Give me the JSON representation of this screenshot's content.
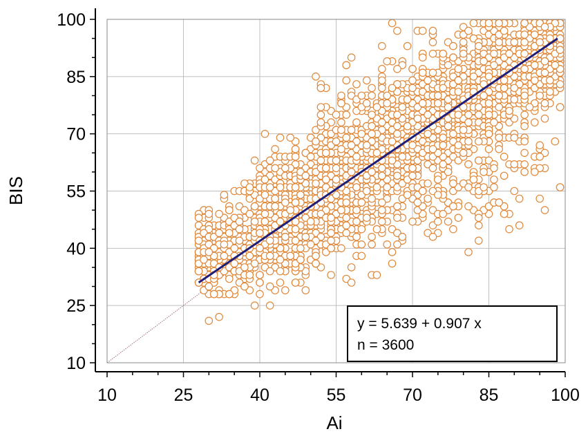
{
  "chart_data": {
    "type": "scatter",
    "xlabel": "Ai",
    "ylabel": "BIS",
    "xlim": [
      10,
      100
    ],
    "ylim": [
      10,
      100
    ],
    "xticks": [
      10,
      25,
      40,
      55,
      70,
      85,
      100
    ],
    "yticks": [
      10,
      25,
      40,
      55,
      70,
      85,
      100
    ],
    "grid": true,
    "identity_line": {
      "from": [
        10,
        10
      ],
      "to": [
        100,
        100
      ],
      "style": "dotted"
    },
    "regression": {
      "intercept": 5.639,
      "slope": 0.907,
      "x_range": [
        28,
        98.5
      ]
    },
    "annotation": {
      "equation": "y = 5.639 + 0.907 x",
      "n_label": "n = 3600"
    },
    "n": 3600,
    "series": [
      {
        "marker": "open-circle",
        "point_clusters": [
          {
            "cx": 30,
            "cy": 38,
            "sx": 1.5,
            "sy": 5,
            "count": 140
          },
          {
            "cx": 35,
            "cy": 41,
            "sx": 3,
            "sy": 6,
            "count": 170
          },
          {
            "cx": 42,
            "cy": 47,
            "sx": 3,
            "sy": 7,
            "count": 300
          },
          {
            "cx": 50,
            "cy": 53,
            "sx": 4,
            "sy": 7,
            "count": 420
          },
          {
            "cx": 58,
            "cy": 60,
            "sx": 4,
            "sy": 7,
            "count": 440
          },
          {
            "cx": 66,
            "cy": 67,
            "sx": 4,
            "sy": 7,
            "count": 400
          },
          {
            "cx": 74,
            "cy": 74,
            "sx": 4,
            "sy": 7,
            "count": 360
          },
          {
            "cx": 82,
            "cy": 81,
            "sx": 4,
            "sy": 7,
            "count": 330
          },
          {
            "cx": 90,
            "cy": 87,
            "sx": 4,
            "sy": 7,
            "count": 360
          },
          {
            "cx": 96,
            "cy": 92,
            "sx": 2.5,
            "sy": 5,
            "count": 380
          },
          {
            "cx": 45,
            "cy": 38,
            "sx": 5,
            "sy": 4,
            "count": 70
          },
          {
            "cx": 60,
            "cy": 45,
            "sx": 6,
            "sy": 5,
            "count": 70
          },
          {
            "cx": 75,
            "cy": 52,
            "sx": 6,
            "sy": 6,
            "count": 60
          },
          {
            "cx": 88,
            "cy": 60,
            "sx": 6,
            "sy": 6,
            "count": 60
          },
          {
            "cx": 62,
            "cy": 78,
            "sx": 5,
            "sy": 5,
            "count": 40
          }
        ],
        "points": [
          [
            30,
            21
          ],
          [
            32,
            22
          ],
          [
            39,
            25
          ],
          [
            42,
            25
          ],
          [
            31,
            28
          ],
          [
            40,
            31
          ],
          [
            45,
            29
          ],
          [
            47,
            31
          ],
          [
            58,
            35
          ],
          [
            52,
            82
          ],
          [
            57,
            88
          ],
          [
            58,
            90
          ],
          [
            64,
            93
          ],
          [
            67,
            97
          ],
          [
            67,
            87
          ],
          [
            69,
            93
          ],
          [
            71,
            97
          ],
          [
            72,
            97
          ],
          [
            74,
            97
          ],
          [
            76,
            91
          ],
          [
            78,
            90
          ],
          [
            81,
            97
          ],
          [
            95,
            61
          ],
          [
            94,
            60
          ],
          [
            70,
            47
          ],
          [
            68,
            43
          ],
          [
            78,
            45
          ],
          [
            83,
            48
          ],
          [
            87,
            52
          ],
          [
            90,
            55
          ],
          [
            75,
            54
          ],
          [
            60,
            38
          ]
        ]
      }
    ],
    "colors": {
      "point": "#E0883A",
      "regression": "#1F1F7A",
      "identity": "#A06A7A",
      "grid": "#BFBFBF",
      "axis": "#000000"
    }
  }
}
